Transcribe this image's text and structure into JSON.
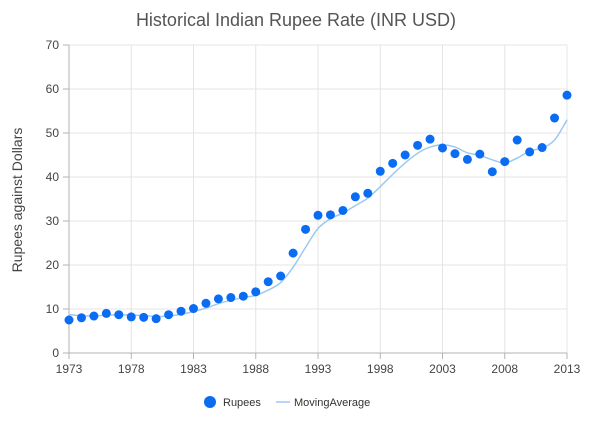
{
  "chart_data": {
    "type": "scatter",
    "title": "Historical Indian Rupee Rate (INR USD)",
    "xlabel": "",
    "ylabel": "Rupees against Dollars",
    "xlim": [
      1973,
      2013
    ],
    "ylim": [
      0,
      70
    ],
    "x_ticks": [
      1973,
      1978,
      1983,
      1988,
      1993,
      1998,
      2003,
      2008,
      2013
    ],
    "y_ticks": [
      0,
      10,
      20,
      30,
      40,
      50,
      60,
      70
    ],
    "grid": true,
    "legend_position": "bottom-center",
    "series": [
      {
        "name": "Rupees",
        "type": "scatter",
        "color": "#0a6cf2",
        "x": [
          1973,
          1974,
          1975,
          1976,
          1977,
          1978,
          1979,
          1980,
          1981,
          1982,
          1983,
          1984,
          1985,
          1986,
          1987,
          1988,
          1989,
          1990,
          1991,
          1992,
          1993,
          1994,
          1995,
          1996,
          1997,
          1998,
          1999,
          2000,
          2001,
          2002,
          2003,
          2004,
          2005,
          2006,
          2007,
          2008,
          2009,
          2010,
          2011,
          2012,
          2013
        ],
        "y": [
          7.5,
          8.0,
          8.4,
          9.0,
          8.7,
          8.2,
          8.1,
          7.8,
          8.7,
          9.5,
          10.1,
          11.3,
          12.3,
          12.6,
          12.9,
          13.9,
          16.2,
          17.5,
          22.7,
          28.1,
          31.3,
          31.4,
          32.4,
          35.5,
          36.3,
          41.3,
          43.1,
          45.0,
          47.2,
          48.6,
          46.6,
          45.3,
          44.0,
          45.2,
          41.2,
          43.5,
          48.4,
          45.7,
          46.7,
          53.4,
          58.6
        ]
      },
      {
        "name": "MovingAverage",
        "type": "line",
        "color": "#9cc9f0",
        "x": [
          1973,
          1974,
          1975,
          1976,
          1977,
          1978,
          1979,
          1980,
          1981,
          1982,
          1983,
          1984,
          1985,
          1986,
          1987,
          1988,
          1989,
          1990,
          1991,
          1992,
          1993,
          1994,
          1995,
          1996,
          1997,
          1998,
          1999,
          2000,
          2001,
          2002,
          2003,
          2004,
          2005,
          2006,
          2007,
          2008,
          2009,
          2010,
          2011,
          2012,
          2013
        ],
        "y": [
          8.7,
          8.5,
          8.4,
          8.6,
          8.7,
          8.6,
          8.5,
          8.3,
          8.4,
          8.8,
          9.4,
          10.2,
          11.2,
          12.0,
          12.6,
          13.1,
          14.3,
          16.0,
          19.5,
          24.0,
          28.3,
          30.5,
          31.8,
          33.5,
          35.2,
          37.8,
          40.6,
          43.2,
          45.4,
          46.8,
          47.3,
          46.8,
          45.5,
          44.9,
          43.9,
          43.2,
          44.3,
          45.9,
          46.6,
          48.4,
          53.0
        ]
      }
    ]
  }
}
